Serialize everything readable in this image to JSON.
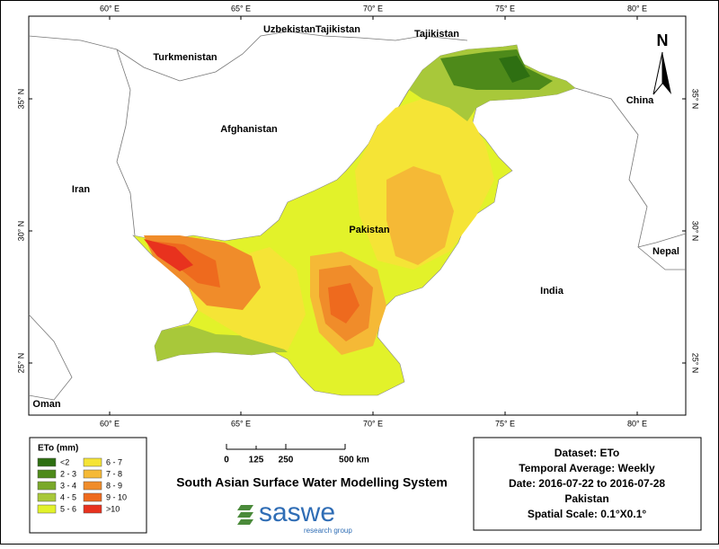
{
  "map": {
    "lon_labels": [
      "60° E",
      "65° E",
      "70° E",
      "75° E",
      "80° E"
    ],
    "lat_labels": [
      "35° N",
      "30° N",
      "25° N"
    ],
    "places": [
      "Uzbekistan",
      "Tajikistan",
      "Tajikistan",
      "Turkmenistan",
      "Afghanistan",
      "China",
      "Iran",
      "Pakistan",
      "Nepal",
      "India",
      "Oman"
    ],
    "north": "N"
  },
  "legend": {
    "title": "ETo (mm)",
    "items": [
      {
        "label": "<2",
        "color": "#2e6f12"
      },
      {
        "label": "2 - 3",
        "color": "#4e8a1a"
      },
      {
        "label": "3 - 4",
        "color": "#79a82a"
      },
      {
        "label": "4 - 5",
        "color": "#a8c83a"
      },
      {
        "label": "5 - 6",
        "color": "#e2f22a"
      },
      {
        "label": "6 - 7",
        "color": "#f5e436"
      },
      {
        "label": "7 - 8",
        "color": "#f5b936"
      },
      {
        "label": "8 - 9",
        "color": "#f08c2a"
      },
      {
        "label": "9 - 10",
        "color": "#ee6a1e"
      },
      {
        "label": ">10",
        "color": "#e8321e"
      }
    ]
  },
  "scale_bar": {
    "labels": [
      "0",
      "125",
      "250",
      "500 km"
    ]
  },
  "title": "South Asian Surface Water Modelling System",
  "logo": {
    "name": "saswe",
    "tagline": "research group"
  },
  "info": {
    "lines": [
      "Dataset: ETo",
      "Temporal Average: Weekly",
      "Date: 2016-07-22 to 2016-07-28",
      "Pakistan",
      "Spatial Scale: 0.1°X0.1°"
    ]
  }
}
